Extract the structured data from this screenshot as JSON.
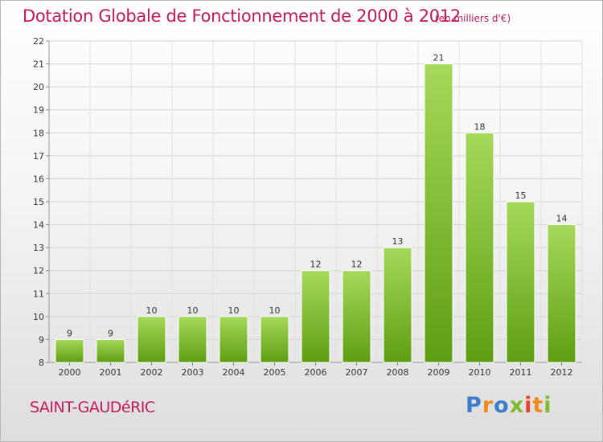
{
  "header": {
    "title": "Dotation Globale de Fonctionnement de 2000 à 2012",
    "subtitle": "(en milliers d'€)"
  },
  "footer": {
    "commune": "SAINT-GAUDéRIC",
    "logo": "Proxiti"
  },
  "colors": {
    "title": "#c2185b",
    "bar_top": "#a6d95a",
    "bar_bottom": "#5e9e12",
    "logo_letters": [
      "#3d7cc9",
      "#f08a1c",
      "#3d7cc9",
      "#7dbb2c",
      "#e8412c",
      "#f08a1c",
      "#7dbb2c"
    ]
  },
  "chart_data": {
    "type": "bar",
    "categories": [
      "2000",
      "2001",
      "2002",
      "2003",
      "2004",
      "2005",
      "2006",
      "2007",
      "2008",
      "2009",
      "2010",
      "2011",
      "2012"
    ],
    "values": [
      9,
      9,
      10,
      10,
      10,
      10,
      12,
      12,
      13,
      21,
      18,
      15,
      14
    ],
    "title": "Dotation Globale de Fonctionnement de 2000 à 2012",
    "subtitle": "(en milliers d'€)",
    "xlabel": "",
    "ylabel": "",
    "ylim": [
      8,
      22
    ],
    "yticks": [
      8,
      9,
      10,
      11,
      12,
      13,
      14,
      15,
      16,
      17,
      18,
      19,
      20,
      21,
      22
    ],
    "grid": true,
    "legend": "none"
  }
}
